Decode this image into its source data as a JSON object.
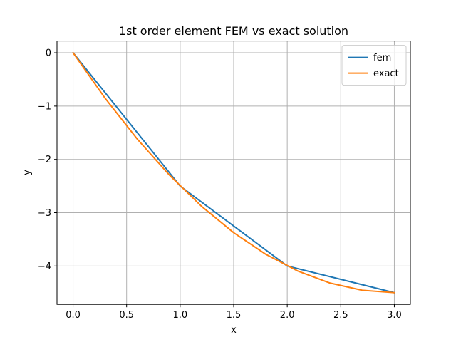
{
  "chart_data": {
    "type": "line",
    "title": "1st order element FEM vs exact solution",
    "xlabel": "x",
    "ylabel": "y",
    "xlim": [
      -0.15,
      3.15
    ],
    "ylim": [
      -4.72,
      0.22
    ],
    "xticks": [
      0.0,
      0.5,
      1.0,
      1.5,
      2.0,
      2.5,
      3.0
    ],
    "xtick_labels": [
      "0.0",
      "0.5",
      "1.0",
      "1.5",
      "2.0",
      "2.5",
      "3.0"
    ],
    "yticks": [
      0,
      -1,
      -2,
      -3,
      -4
    ],
    "ytick_labels": [
      "0",
      "−1",
      "−2",
      "−3",
      "−4"
    ],
    "grid": true,
    "legend_position": "top-right",
    "series": [
      {
        "name": "fem",
        "color": "#1f77b4",
        "x": [
          0.0,
          1.0,
          2.0,
          3.0
        ],
        "y": [
          0.0,
          -2.5,
          -4.0,
          -4.5
        ]
      },
      {
        "name": "exact",
        "color": "#ff7f0e",
        "x": [
          0.0,
          0.3,
          0.6,
          0.9,
          1.2,
          1.5,
          1.8,
          2.1,
          2.4,
          2.7,
          3.0
        ],
        "y": [
          0.0,
          -0.855,
          -1.62,
          -2.295,
          -2.88,
          -3.375,
          -3.78,
          -4.095,
          -4.32,
          -4.455,
          -4.5
        ]
      }
    ]
  }
}
